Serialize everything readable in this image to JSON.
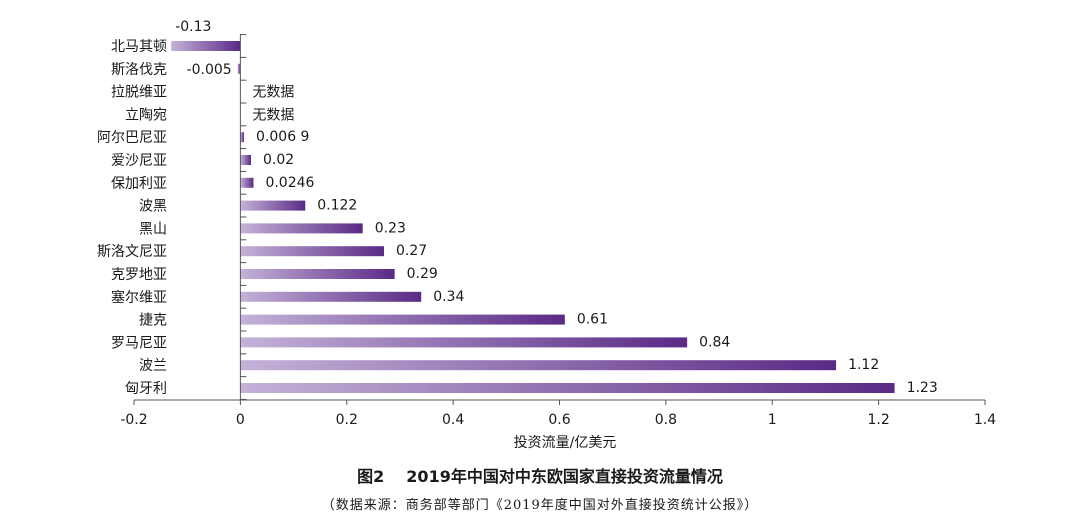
{
  "chart_data": {
    "type": "bar",
    "orientation": "horizontal",
    "categories": [
      "北马其顿",
      "斯洛伐克",
      "拉脱维亚",
      "立陶宛",
      "阿尔巴尼亚",
      "爱沙尼亚",
      "保加利亚",
      "波黑",
      "黑山",
      "斯洛文尼亚",
      "克罗地亚",
      "塞尔维亚",
      "捷克",
      "罗马尼亚",
      "波兰",
      "匈牙利"
    ],
    "values": [
      -0.13,
      -0.005,
      null,
      null,
      0.0069,
      0.02,
      0.0246,
      0.122,
      0.23,
      0.27,
      0.29,
      0.34,
      0.61,
      0.84,
      1.12,
      1.23
    ],
    "value_labels": [
      "-0.13",
      "-0.005",
      "无数据",
      "无数据",
      "0.006 9",
      "0.02",
      "0.0246",
      "0.122",
      "0.23",
      "0.27",
      "0.29",
      "0.34",
      "0.61",
      "0.84",
      "1.12",
      "1.23"
    ],
    "xlabel": "投资流量/亿美元",
    "xlim": [
      -0.2,
      1.4
    ],
    "xticks": [
      -0.2,
      0,
      0.2,
      0.4,
      0.6,
      0.8,
      1,
      1.2,
      1.4
    ],
    "xtick_labels": [
      "-0.2",
      "0",
      "0.2",
      "0.4",
      "0.6",
      "0.8",
      "1",
      "1.2",
      "1.4"
    ],
    "grid": false,
    "bar_color_start": "#c4b2d8",
    "bar_color_end": "#5a2a86"
  },
  "figure": {
    "number": "图2",
    "title": "2019年中国对中东欧国家直接投资流量情况",
    "source": "（数据来源：商务部等部门《2019年度中国对外直接投资统计公报》）"
  }
}
